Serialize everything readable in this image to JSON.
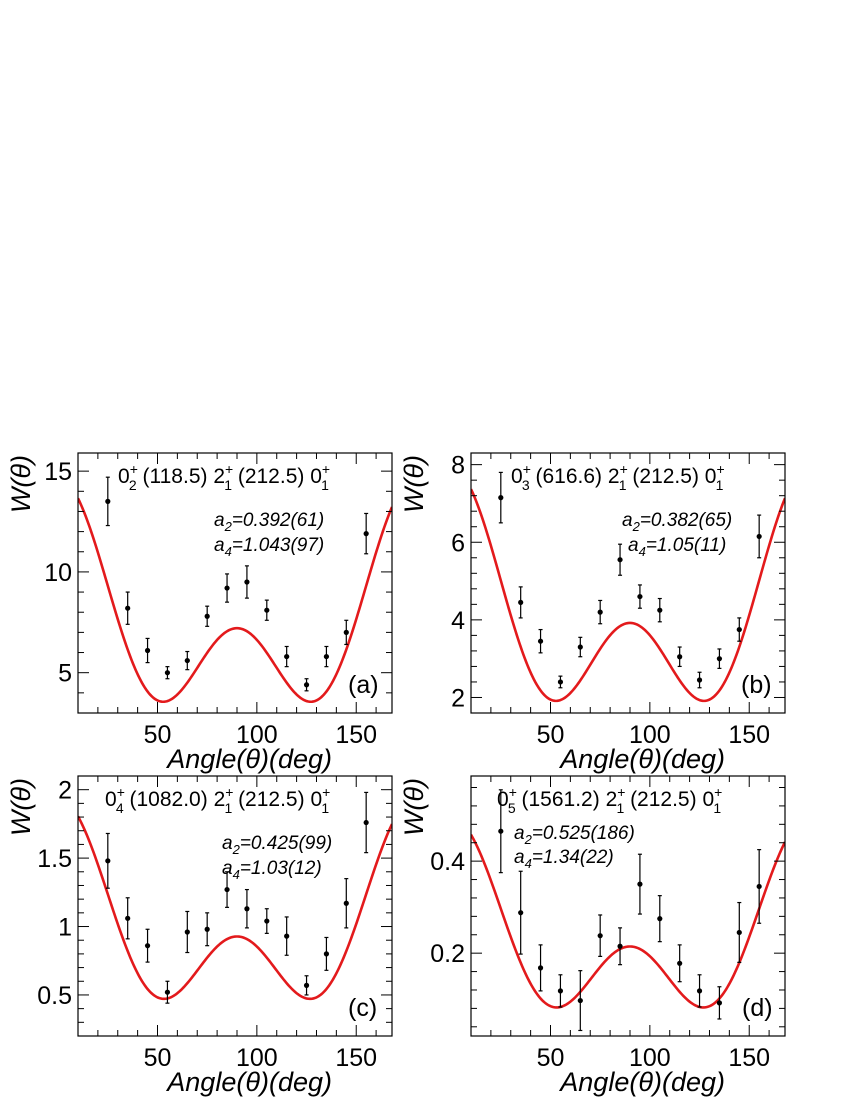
{
  "chart_data": [
    {
      "type": "scatter",
      "panel_label": "(a)",
      "cascade": [
        "0",
        "+",
        "2",
        "(118.5)",
        "2",
        "+",
        "1",
        "(212.5)",
        "0",
        "+",
        "1"
      ],
      "coef_a2": "a",
      "coef_a2_sub": "2",
      "coef_a2_val": "=0.392(61)",
      "coef_a4": "a",
      "coef_a4_sub": "4",
      "coef_a4_val": "=1.043(97)",
      "xlabel": "Angle(θ)(deg)",
      "ylabel": "W(θ)",
      "xlim": [
        10,
        168
      ],
      "ylim": [
        3,
        15.9
      ],
      "xticks": [
        50,
        100,
        150
      ],
      "yticks": [
        5,
        10,
        15
      ],
      "ytick_labels": [
        "5",
        "10",
        "15"
      ],
      "fit": {
        "A0": 6.03,
        "a2": 0.392,
        "a4": 1.043
      },
      "x": [
        25,
        35,
        45,
        55,
        65,
        75,
        85,
        95,
        105,
        115,
        125,
        135,
        145,
        155
      ],
      "y": [
        13.5,
        8.2,
        6.1,
        5.0,
        5.6,
        7.8,
        9.2,
        9.5,
        8.1,
        5.8,
        4.4,
        5.8,
        7.0,
        11.9
      ],
      "yerr": [
        1.2,
        0.8,
        0.6,
        0.3,
        0.45,
        0.5,
        0.7,
        0.8,
        0.5,
        0.5,
        0.3,
        0.5,
        0.6,
        1.0
      ]
    },
    {
      "type": "scatter",
      "panel_label": "(b)",
      "cascade": [
        "0",
        "+",
        "3",
        "(616.6)",
        "2",
        "+",
        "1",
        "(212.5)",
        "0",
        "+",
        "1"
      ],
      "coef_a2": "a",
      "coef_a2_sub": "2",
      "coef_a2_val": "=0.382(65)",
      "coef_a4": "a",
      "coef_a4_sub": "4",
      "coef_a4_val": "=1.05(11)",
      "xlabel": "Angle(θ)(deg)",
      "ylabel": "W(θ)",
      "xlim": [
        10,
        168
      ],
      "ylim": [
        1.6,
        8.3
      ],
      "xticks": [
        50,
        100,
        150
      ],
      "yticks": [
        2,
        4,
        6,
        8
      ],
      "ytick_labels": [
        "2",
        "4",
        "6",
        "8"
      ],
      "fit": {
        "A0": 3.26,
        "a2": 0.382,
        "a4": 1.05
      },
      "x": [
        25,
        35,
        45,
        55,
        65,
        75,
        85,
        95,
        105,
        115,
        125,
        135,
        145,
        155
      ],
      "y": [
        7.15,
        4.45,
        3.45,
        2.4,
        3.3,
        4.2,
        5.55,
        4.6,
        4.25,
        3.05,
        2.45,
        3.0,
        3.75,
        6.15
      ],
      "yerr": [
        0.65,
        0.4,
        0.3,
        0.15,
        0.25,
        0.3,
        0.4,
        0.3,
        0.3,
        0.25,
        0.2,
        0.25,
        0.3,
        0.55
      ]
    },
    {
      "type": "scatter",
      "panel_label": "(c)",
      "cascade": [
        "0",
        "+",
        "4",
        "(1082.0)",
        "2",
        "+",
        "1",
        "(212.5)",
        "0",
        "+",
        "1"
      ],
      "coef_a2": "a",
      "coef_a2_sub": "2",
      "coef_a2_val": "=0.425(99)",
      "coef_a4": "a",
      "coef_a4_sub": "4",
      "coef_a4_val": "=1.03(12)",
      "xlabel": "Angle(θ)(deg)",
      "ylabel": "W(θ)",
      "xlim": [
        10,
        168
      ],
      "ylim": [
        0.2,
        2.1
      ],
      "xticks": [
        50,
        100,
        150
      ],
      "yticks": [
        0.5,
        1,
        1.5,
        2
      ],
      "ytick_labels": [
        "0.5",
        "1",
        "1.5",
        "2"
      ],
      "fit": {
        "A0": 0.79,
        "a2": 0.425,
        "a4": 1.03
      },
      "x": [
        25,
        35,
        45,
        55,
        65,
        75,
        85,
        95,
        105,
        115,
        125,
        135,
        145,
        155
      ],
      "y": [
        1.48,
        1.06,
        0.86,
        0.52,
        0.96,
        0.98,
        1.27,
        1.13,
        1.04,
        0.93,
        0.57,
        0.8,
        1.17,
        1.76
      ],
      "yerr": [
        0.2,
        0.15,
        0.12,
        0.08,
        0.15,
        0.12,
        0.13,
        0.14,
        0.09,
        0.14,
        0.07,
        0.12,
        0.18,
        0.22
      ]
    },
    {
      "type": "scatter",
      "panel_label": "(d)",
      "cascade": [
        "0",
        "+",
        "5",
        "(1561.2)",
        "2",
        "+",
        "1",
        "(212.5)",
        "0",
        "+",
        "1"
      ],
      "coef_a2": "a",
      "coef_a2_sub": "2",
      "coef_a2_val": "=0.525(186)",
      "coef_a4": "a",
      "coef_a4_sub": "4",
      "coef_a4_val": "=1.34(22)",
      "xlabel": "Angle(θ)(deg)",
      "ylabel": "W(θ)",
      "xlim": [
        10,
        168
      ],
      "ylim": [
        0.02,
        0.585
      ],
      "xticks": [
        50,
        100,
        150
      ],
      "yticks": [
        0.2,
        0.4
      ],
      "ytick_labels": [
        "0.2",
        "0.4"
      ],
      "fit": {
        "A0": 0.173,
        "a2": 0.525,
        "a4": 1.34
      },
      "x": [
        25,
        35,
        45,
        55,
        65,
        75,
        85,
        95,
        105,
        115,
        125,
        135,
        145,
        155
      ],
      "y": [
        0.465,
        0.288,
        0.168,
        0.118,
        0.097,
        0.238,
        0.215,
        0.35,
        0.275,
        0.178,
        0.118,
        0.092,
        0.245,
        0.345
      ],
      "yerr": [
        0.09,
        0.09,
        0.05,
        0.035,
        0.065,
        0.045,
        0.04,
        0.065,
        0.05,
        0.04,
        0.035,
        0.035,
        0.065,
        0.08
      ]
    }
  ]
}
